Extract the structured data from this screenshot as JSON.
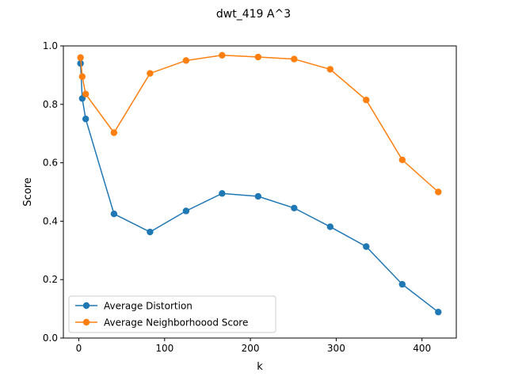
{
  "chart_data": {
    "type": "line",
    "title": "dwt_419 A^3",
    "xlabel": "k",
    "ylabel": "Score",
    "xlim": [
      -18,
      440
    ],
    "ylim": [
      0,
      1.0
    ],
    "x_ticks": [
      0,
      100,
      200,
      300,
      400
    ],
    "y_ticks": [
      0.0,
      0.2,
      0.4,
      0.6,
      0.8,
      1.0
    ],
    "x_tick_labels": [
      "0",
      "100",
      "200",
      "300",
      "400"
    ],
    "y_tick_labels": [
      "0.0",
      "0.2",
      "0.4",
      "0.6",
      "0.8",
      "1.0"
    ],
    "grid": false,
    "legend_position": "lower-left",
    "x": [
      2,
      4,
      8,
      41,
      83,
      125,
      167,
      209,
      251,
      293,
      335,
      377,
      419
    ],
    "series": [
      {
        "name": "Average Distortion",
        "color": "#1f77b4",
        "values": [
          0.94,
          0.82,
          0.75,
          0.425,
          0.363,
          0.435,
          0.495,
          0.485,
          0.445,
          0.381,
          0.313,
          0.184,
          0.089
        ]
      },
      {
        "name": "Average Neighborhoood Score",
        "color": "#ff7f0e",
        "values": [
          0.96,
          0.895,
          0.835,
          0.703,
          0.906,
          0.95,
          0.968,
          0.962,
          0.955,
          0.92,
          0.815,
          0.61,
          0.5
        ]
      }
    ]
  }
}
